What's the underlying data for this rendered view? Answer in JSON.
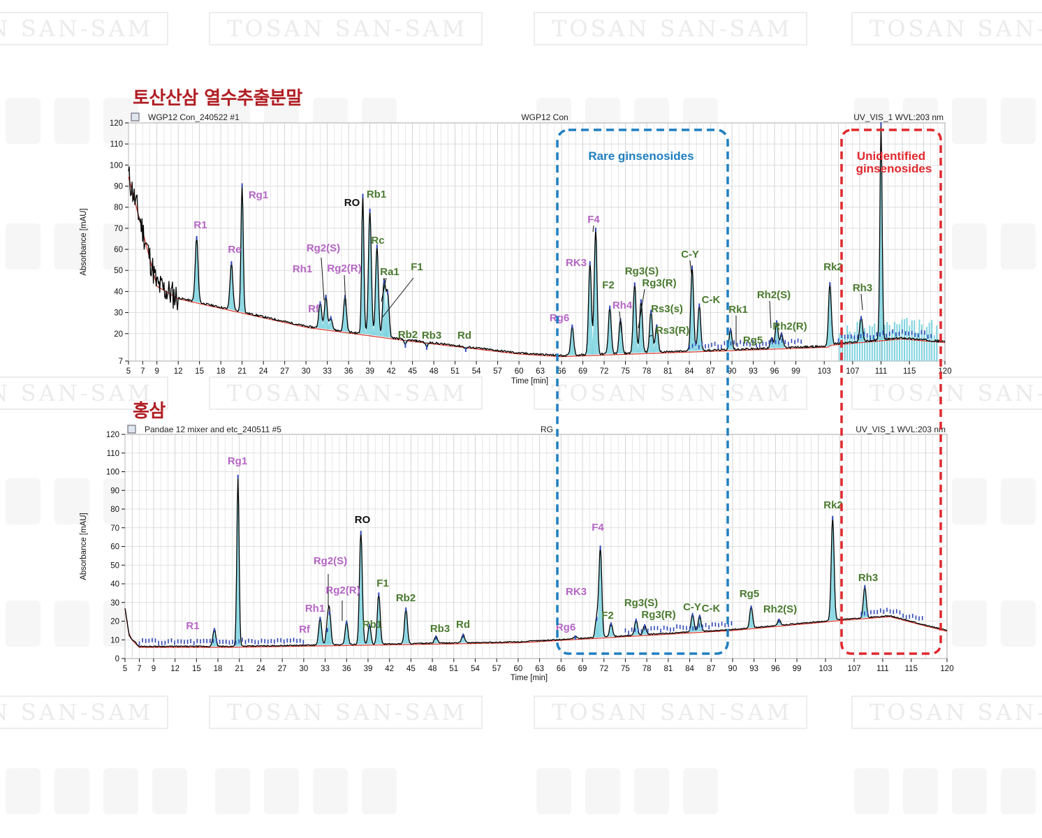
{
  "watermark": {
    "text_repeat": "TOSAN SAN-SAM",
    "glyph_row": "토산산삼",
    "color": "#ebebeb"
  },
  "colors": {
    "title_red": "#b01e23",
    "pink_label": "#b565c4",
    "green_label": "#4a7a2f",
    "black_label": "#111111",
    "trace": "#000000",
    "peak_fill": "#7dd3e0",
    "baseline": "#d9352b",
    "marker": "#2f49b8",
    "rare_box": "#1f7fc0",
    "unidentified_box": "#e0282e"
  },
  "sections": {
    "top_title": "토산산삼 열수추출분말",
    "bottom_title": "홍삼"
  },
  "regions": {
    "rare": "Rare ginsenosides",
    "unidentified_line1": "Unidentified",
    "unidentified_line2": "ginsenosides"
  },
  "chart_data": [
    {
      "type": "line",
      "id": "top",
      "header_left": "WGP12 Con_240522 #1",
      "header_center": "WGP12 Con",
      "header_right": "UV_VIS_1 WVL:203 nm",
      "xlabel": "Time [min]",
      "ylabel": "Absorbance [mAU]",
      "xlim": [
        5,
        120
      ],
      "ylim": [
        7,
        120
      ],
      "xticks": [
        5,
        7,
        9,
        12,
        15,
        18,
        21,
        24,
        27,
        30,
        33,
        36,
        39,
        42,
        45,
        48,
        51,
        54,
        57,
        60,
        63,
        66,
        69,
        72,
        75,
        78,
        81,
        84,
        87,
        90,
        93,
        96,
        99,
        103,
        107,
        111,
        115,
        120
      ],
      "yticks": [
        7,
        20,
        30,
        40,
        50,
        60,
        70,
        80,
        90,
        100,
        110,
        120
      ],
      "peaks": [
        {
          "name": "R1",
          "x": 14.6,
          "y": 66
        },
        {
          "name": "Re",
          "x": 19.5,
          "y": 54
        },
        {
          "name": "Rg1",
          "x": 21.0,
          "y": 91
        },
        {
          "name": "Rh1",
          "x": 32.0,
          "y": 35
        },
        {
          "name": "Rg2(S)",
          "x": 32.8,
          "y": 38
        },
        {
          "name": "Rf",
          "x": 33.5,
          "y": 28
        },
        {
          "name": "Rg2(R)",
          "x": 35.5,
          "y": 38
        },
        {
          "name": "RO",
          "x": 38.0,
          "y": 86
        },
        {
          "name": "Rb1",
          "x": 39.0,
          "y": 79
        },
        {
          "name": "Rc",
          "x": 40.0,
          "y": 62
        },
        {
          "name": "Ra1",
          "x": 41.0,
          "y": 45
        },
        {
          "name": "F1",
          "x": 41.5,
          "y": 40
        },
        {
          "name": "Rb2",
          "x": 44.0,
          "y": 15
        },
        {
          "name": "Rb3",
          "x": 47.0,
          "y": 14
        },
        {
          "name": "Rd",
          "x": 52.5,
          "y": 13
        },
        {
          "name": "Rg6",
          "x": 67.5,
          "y": 24
        },
        {
          "name": "RK3",
          "x": 70.0,
          "y": 54
        },
        {
          "name": "F4",
          "x": 70.8,
          "y": 70
        },
        {
          "name": "F2",
          "x": 72.8,
          "y": 33
        },
        {
          "name": "Rh4",
          "x": 74.3,
          "y": 27
        },
        {
          "name": "Rg3(S)",
          "x": 76.3,
          "y": 44
        },
        {
          "name": "Rg3(R)",
          "x": 77.2,
          "y": 36
        },
        {
          "name": "Rs3(s)",
          "x": 78.6,
          "y": 31
        },
        {
          "name": "Rs3(R)",
          "x": 79.4,
          "y": 24
        },
        {
          "name": "C-Y",
          "x": 84.4,
          "y": 52
        },
        {
          "name": "C-K",
          "x": 85.4,
          "y": 34
        },
        {
          "name": "Rk1",
          "x": 89.8,
          "y": 22
        },
        {
          "name": "Rg5",
          "x": 95.6,
          "y": 18
        },
        {
          "name": "Rh2(S)",
          "x": 96.3,
          "y": 26
        },
        {
          "name": "Rh2(R)",
          "x": 97.0,
          "y": 20
        },
        {
          "name": "Rk2",
          "x": 103.8,
          "y": 44
        },
        {
          "name": "Rh3",
          "x": 108.2,
          "y": 28
        },
        {
          "name": "",
          "x": 111.0,
          "y": 120
        }
      ]
    },
    {
      "type": "line",
      "id": "bottom",
      "header_left": "Pandae 12 mixer and etc_240511 #5",
      "header_center": "RG",
      "header_right": "UV_VIS_1 WVL:203 nm",
      "xlabel": "Time [min]",
      "ylabel": "Absorbance [mAU]",
      "xlim": [
        5,
        120
      ],
      "ylim": [
        0,
        120
      ],
      "xticks": [
        5,
        7,
        9,
        12,
        15,
        18,
        21,
        24,
        27,
        30,
        33,
        36,
        39,
        42,
        45,
        48,
        51,
        54,
        57,
        60,
        63,
        66,
        69,
        72,
        75,
        78,
        81,
        84,
        87,
        90,
        93,
        96,
        99,
        103,
        107,
        111,
        115,
        120
      ],
      "yticks": [
        0,
        10,
        20,
        30,
        40,
        50,
        60,
        70,
        80,
        90,
        100,
        110,
        120
      ],
      "peaks": [
        {
          "name": "R1",
          "x": 17.5,
          "y": 16
        },
        {
          "name": "Rg1",
          "x": 20.8,
          "y": 98
        },
        {
          "name": "Rh1",
          "x": 32.3,
          "y": 22
        },
        {
          "name": "Rf",
          "x": 33.3,
          "y": 16
        },
        {
          "name": "Rg2(S)",
          "x": 33.6,
          "y": 25
        },
        {
          "name": "Rg2(R)",
          "x": 36.0,
          "y": 20
        },
        {
          "name": "RO",
          "x": 38.0,
          "y": 68
        },
        {
          "name": "Rb1",
          "x": 39.2,
          "y": 18
        },
        {
          "name": "F1",
          "x": 40.5,
          "y": 35
        },
        {
          "name": "Rb2",
          "x": 44.3,
          "y": 27
        },
        {
          "name": "Rb3",
          "x": 48.5,
          "y": 12
        },
        {
          "name": "Rd",
          "x": 52.3,
          "y": 13
        },
        {
          "name": "Rg6",
          "x": 68.0,
          "y": 12
        },
        {
          "name": "RK3",
          "x": 71.0,
          "y": 22
        },
        {
          "name": "F4",
          "x": 71.5,
          "y": 60
        },
        {
          "name": "F2",
          "x": 73.0,
          "y": 19
        },
        {
          "name": "Rg3(S)",
          "x": 76.5,
          "y": 21
        },
        {
          "name": "Rg3(R)",
          "x": 77.7,
          "y": 18
        },
        {
          "name": "C-Y",
          "x": 84.4,
          "y": 24
        },
        {
          "name": "C-K",
          "x": 85.4,
          "y": 23
        },
        {
          "name": "Rg5",
          "x": 92.6,
          "y": 28
        },
        {
          "name": "Rh2(S)",
          "x": 96.5,
          "y": 21
        },
        {
          "name": "Rk2",
          "x": 104.0,
          "y": 76
        },
        {
          "name": "Rh3",
          "x": 108.5,
          "y": 39
        }
      ]
    }
  ]
}
